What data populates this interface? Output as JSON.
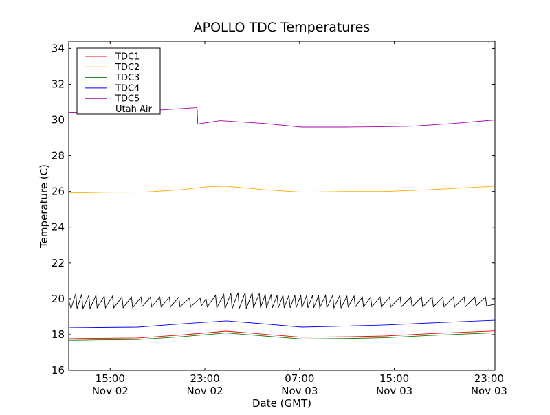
{
  "chart_data": {
    "type": "line",
    "title": "APOLLO TDC Temperatures",
    "xlabel": "Date (GMT)",
    "ylabel": "Temperature (C)",
    "x_units": "hours since Nov 02 00:00 GMT",
    "xlim": [
      11.5,
      47.5
    ],
    "ylim": [
      16,
      34.4
    ],
    "yticks": [
      16,
      18,
      20,
      22,
      24,
      26,
      28,
      30,
      32,
      34
    ],
    "xticks": [
      {
        "x": 15,
        "time": "15:00",
        "date": "Nov 02"
      },
      {
        "x": 23,
        "time": "23:00",
        "date": "Nov 02"
      },
      {
        "x": 31,
        "time": "07:00",
        "date": "Nov 03"
      },
      {
        "x": 39,
        "time": "15:00",
        "date": "Nov 03"
      },
      {
        "x": 47,
        "time": "23:00",
        "date": "Nov 03"
      }
    ],
    "grid": false,
    "legend_position": "top-left",
    "series": [
      {
        "name": "TDC1",
        "color": "#ff0000",
        "x": [
          11.5,
          14,
          17.3,
          21,
          24.8,
          28,
          31.2,
          35,
          38.2,
          42,
          47.5
        ],
        "y": [
          17.77,
          17.79,
          17.81,
          17.98,
          18.19,
          18.02,
          17.85,
          17.88,
          17.92,
          18.05,
          18.2
        ]
      },
      {
        "name": "TDC2",
        "color": "#ffaa00",
        "x": [
          11.5,
          15,
          18,
          21,
          23.3,
          24.8,
          28,
          31.2,
          35,
          38.2,
          42,
          47.5
        ],
        "y": [
          25.92,
          25.96,
          25.97,
          26.1,
          26.27,
          26.3,
          26.1,
          25.96,
          26.0,
          26.0,
          26.1,
          26.3
        ]
      },
      {
        "name": "TDC3",
        "color": "#008000",
        "x": [
          11.5,
          14,
          17.3,
          21,
          24.8,
          28,
          31.2,
          35,
          38.2,
          42,
          47.5
        ],
        "y": [
          17.68,
          17.7,
          17.72,
          17.88,
          18.09,
          17.92,
          17.75,
          17.78,
          17.82,
          17.95,
          18.1
        ]
      },
      {
        "name": "TDC4",
        "color": "#0000ff",
        "x": [
          11.5,
          14,
          17.3,
          21,
          24.8,
          28,
          31.2,
          35,
          38.2,
          42,
          47.5
        ],
        "y": [
          18.38,
          18.4,
          18.42,
          18.6,
          18.77,
          18.6,
          18.42,
          18.48,
          18.54,
          18.65,
          18.8
        ]
      },
      {
        "name": "TDC5",
        "color": "#aa00aa",
        "x": [
          11.5,
          15,
          19,
          22.3,
          22.35,
          22.4,
          24.3,
          28,
          31.2,
          34.7,
          38,
          40.5,
          44,
          47.5
        ],
        "y": [
          30.42,
          30.45,
          30.55,
          30.69,
          30.6,
          29.77,
          29.96,
          29.8,
          29.6,
          29.6,
          29.62,
          29.65,
          29.8,
          30.0
        ]
      },
      {
        "name": "Utah Air",
        "color": "#000000",
        "x": [
          11.5,
          11.7,
          12.1,
          12.2,
          12.6,
          12.7,
          13.2,
          13.3,
          13.8,
          13.9,
          14.5,
          14.6,
          15.2,
          15.3,
          16.0,
          16.1,
          16.8,
          16.9,
          17.6,
          17.7,
          18.4,
          18.5,
          19.2,
          19.3,
          20.0,
          20.1,
          20.8,
          20.9,
          21.7,
          21.8,
          22.6,
          22.7,
          23.1,
          23.2,
          23.9,
          24.0,
          24.6,
          24.7,
          25.2,
          25.3,
          25.8,
          25.9,
          26.4,
          26.5,
          27.0,
          27.1,
          27.6,
          27.7,
          28.1,
          28.2,
          28.6,
          28.7,
          29.1,
          29.2,
          29.6,
          29.7,
          30.1,
          30.2,
          30.6,
          30.7,
          31.1,
          31.2,
          31.6,
          31.7,
          32.1,
          32.2,
          32.6,
          32.7,
          33.2,
          33.3,
          33.8,
          33.9,
          34.4,
          34.5,
          35.0,
          35.1,
          35.6,
          35.7,
          36.3,
          36.4,
          37.0,
          37.1,
          37.8,
          37.9,
          38.6,
          38.7,
          39.5,
          39.6,
          40.4,
          40.5,
          41.3,
          41.4,
          42.2,
          42.3,
          43.1,
          43.2,
          44.0,
          44.1,
          44.9,
          45.0,
          45.8,
          45.9,
          46.7,
          46.8,
          47.5
        ],
        "y": [
          19.9,
          19.45,
          20.3,
          19.45,
          20.25,
          19.45,
          20.2,
          19.45,
          20.2,
          19.5,
          20.15,
          19.5,
          20.15,
          19.5,
          20.1,
          19.5,
          20.1,
          19.5,
          20.1,
          19.55,
          20.1,
          19.55,
          20.1,
          19.55,
          20.1,
          19.55,
          20.1,
          19.55,
          20.05,
          19.55,
          20.05,
          19.6,
          20.0,
          19.55,
          20.2,
          19.5,
          20.25,
          19.45,
          20.3,
          19.45,
          20.35,
          19.45,
          20.35,
          19.45,
          20.35,
          19.5,
          20.3,
          19.5,
          20.25,
          19.5,
          20.25,
          19.5,
          20.2,
          19.5,
          20.2,
          19.5,
          20.2,
          19.5,
          20.2,
          19.5,
          20.2,
          19.5,
          20.2,
          19.5,
          20.2,
          19.5,
          20.2,
          19.5,
          20.2,
          19.5,
          20.2,
          19.5,
          20.2,
          19.5,
          20.15,
          19.55,
          20.15,
          19.55,
          20.1,
          19.55,
          20.1,
          19.55,
          20.1,
          19.55,
          20.1,
          19.55,
          20.1,
          19.55,
          20.1,
          19.55,
          20.1,
          19.55,
          20.1,
          19.55,
          20.1,
          19.55,
          20.1,
          19.55,
          20.1,
          19.55,
          20.1,
          19.6,
          20.1,
          19.6,
          19.7
        ]
      }
    ]
  }
}
